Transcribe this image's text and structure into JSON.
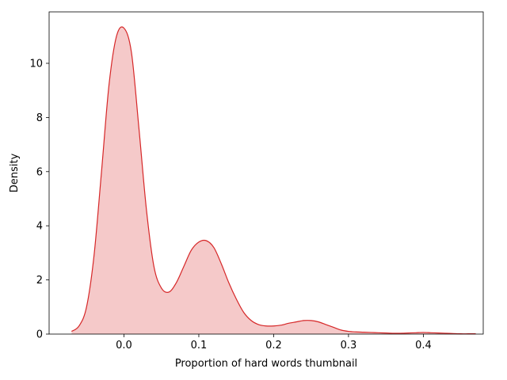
{
  "chart_data": {
    "type": "area",
    "title": "",
    "xlabel": "Proportion of hard words thumbnail",
    "ylabel": "Density",
    "xlim": [
      -0.1,
      0.48
    ],
    "ylim": [
      0,
      11.9
    ],
    "xticks": [
      0.0,
      0.1,
      0.2,
      0.3,
      0.4
    ],
    "xtick_labels": [
      "0.0",
      "0.1",
      "0.2",
      "0.3",
      "0.4"
    ],
    "yticks": [
      0,
      2,
      4,
      6,
      8,
      10
    ],
    "ytick_labels": [
      "0",
      "2",
      "4",
      "6",
      "8",
      "10"
    ],
    "grid": false,
    "legend": "none",
    "colors": {
      "line": "#d62728",
      "fill": "#d62728",
      "fill_opacity": 0.25
    },
    "series": [
      {
        "x": [
          -0.07,
          -0.06,
          -0.05,
          -0.04,
          -0.03,
          -0.02,
          -0.01,
          0.0,
          0.01,
          0.02,
          0.03,
          0.04,
          0.05,
          0.06,
          0.07,
          0.08,
          0.09,
          0.1,
          0.11,
          0.12,
          0.13,
          0.14,
          0.15,
          0.16,
          0.17,
          0.18,
          0.19,
          0.2,
          0.21,
          0.22,
          0.23,
          0.24,
          0.25,
          0.26,
          0.27,
          0.28,
          0.29,
          0.3,
          0.31,
          0.32,
          0.33,
          0.34,
          0.35,
          0.36,
          0.37,
          0.38,
          0.39,
          0.4,
          0.41,
          0.42,
          0.43,
          0.44,
          0.45,
          0.46,
          0.47
        ],
        "y": [
          0.1,
          0.3,
          1.0,
          2.9,
          6.0,
          9.2,
          11.0,
          11.3,
          10.4,
          7.6,
          4.6,
          2.5,
          1.7,
          1.55,
          1.9,
          2.5,
          3.1,
          3.4,
          3.45,
          3.2,
          2.6,
          1.9,
          1.3,
          0.8,
          0.5,
          0.35,
          0.3,
          0.3,
          0.33,
          0.4,
          0.45,
          0.5,
          0.5,
          0.45,
          0.35,
          0.25,
          0.15,
          0.1,
          0.08,
          0.07,
          0.06,
          0.05,
          0.04,
          0.03,
          0.03,
          0.04,
          0.05,
          0.06,
          0.05,
          0.04,
          0.03,
          0.02,
          0.01,
          0.01,
          0.01
        ]
      }
    ]
  }
}
